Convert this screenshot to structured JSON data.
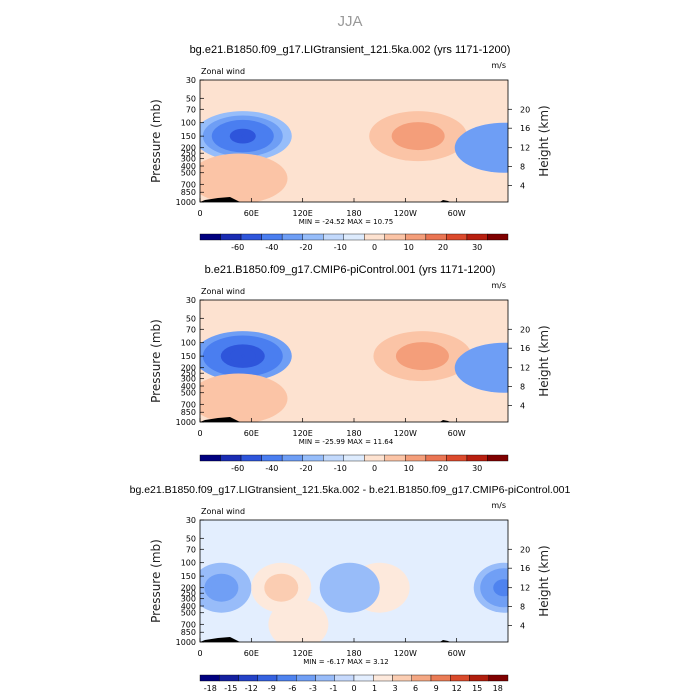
{
  "figure_title": "JJA",
  "chart_data": [
    {
      "type": "heatmap",
      "title": "bg.e21.B1850.f09_g17.LIGtransient_121.5ka.002 (yrs 1171-1200)",
      "variable": "Zonal wind",
      "units": "m/s",
      "ylabel": "Pressure (mb)",
      "ylabel_right": "Height (km)",
      "x_ticks": [
        "0",
        "60E",
        "120E",
        "180",
        "120W",
        "60W"
      ],
      "y_ticks": [
        "30",
        "50",
        "70",
        "100",
        "150",
        "200",
        "250",
        "300",
        "400",
        "500",
        "700",
        "850",
        "1000"
      ],
      "height_ticks": [
        "4",
        "8",
        "12",
        "16",
        "20"
      ],
      "stats": "MIN = -24.52   MAX =  10.75",
      "colorbar_labels": [
        "-60",
        "-40",
        "-20",
        "-10",
        "0",
        "10",
        "20",
        "30"
      ],
      "features": [
        {
          "lon": 50,
          "p": 150,
          "value": -24.5
        },
        {
          "lon": 255,
          "p": 150,
          "value": 10.7
        },
        {
          "lon": 45,
          "p": 600,
          "value": 5
        },
        {
          "lon": 355,
          "p": 200,
          "value": -6
        }
      ]
    },
    {
      "type": "heatmap",
      "title": "b.e21.B1850.f09_g17.CMIP6-piControl.001 (yrs 1171-1200)",
      "variable": "Zonal wind",
      "units": "m/s",
      "ylabel": "Pressure (mb)",
      "ylabel_right": "Height (km)",
      "x_ticks": [
        "0",
        "60E",
        "120E",
        "180",
        "120W",
        "60W"
      ],
      "y_ticks": [
        "30",
        "50",
        "70",
        "100",
        "150",
        "200",
        "250",
        "300",
        "400",
        "500",
        "700",
        "850",
        "1000"
      ],
      "height_ticks": [
        "4",
        "8",
        "12",
        "16",
        "20"
      ],
      "stats": "MIN = -25.99   MAX =  11.64",
      "colorbar_labels": [
        "-60",
        "-40",
        "-20",
        "-10",
        "0",
        "10",
        "20",
        "30"
      ],
      "features": [
        {
          "lon": 50,
          "p": 150,
          "value": -26
        },
        {
          "lon": 260,
          "p": 150,
          "value": 11.6
        },
        {
          "lon": 45,
          "p": 600,
          "value": 5
        },
        {
          "lon": 355,
          "p": 200,
          "value": -6
        }
      ]
    },
    {
      "type": "heatmap",
      "title": "bg.e21.B1850.f09_g17.LIGtransient_121.5ka.002 - b.e21.B1850.f09_g17.CMIP6-piControl.001",
      "variable": "Zonal wind",
      "units": "m/s",
      "ylabel": "Pressure (mb)",
      "ylabel_right": "Height (km)",
      "x_ticks": [
        "0",
        "60E",
        "120E",
        "180",
        "120W",
        "60W"
      ],
      "y_ticks": [
        "30",
        "50",
        "70",
        "100",
        "150",
        "200",
        "250",
        "300",
        "400",
        "500",
        "700",
        "850",
        "1000"
      ],
      "height_ticks": [
        "4",
        "8",
        "12",
        "16",
        "20"
      ],
      "stats": "MIN =  -6.17   MAX =    3.12",
      "colorbar_labels": [
        "-18",
        "-15",
        "-12",
        "-9",
        "-6",
        "-3",
        "-1",
        "0",
        "1",
        "3",
        "6",
        "9",
        "12",
        "15",
        "18"
      ],
      "features": [
        {
          "lon": 25,
          "p": 200,
          "value": -6
        },
        {
          "lon": 95,
          "p": 200,
          "value": 3
        },
        {
          "lon": 210,
          "p": 200,
          "value": 2.5
        },
        {
          "lon": 355,
          "p": 200,
          "value": -6.2
        },
        {
          "lon": 115,
          "p": 700,
          "value": 1.5
        },
        {
          "lon": 175,
          "p": 200,
          "value": -3
        }
      ]
    }
  ],
  "colors": {
    "main_scale": [
      "#00007f",
      "#1a2cb3",
      "#2e55db",
      "#4a7ef0",
      "#6e9ef5",
      "#96bdfa",
      "#c2d9fc",
      "#ddebfd",
      "#fde2d0",
      "#fbc4a6",
      "#f49e7a",
      "#ea7553",
      "#dc4a2c",
      "#b81f0f",
      "#7f0000"
    ],
    "diff_scale": [
      "#00007f",
      "#14209f",
      "#2442c7",
      "#3562e0",
      "#4f83ef",
      "#709ff5",
      "#98bcf9",
      "#c6d9fc",
      "#e3eefe",
      "#fde9dc",
      "#fbcdb2",
      "#f4a783",
      "#ea7c56",
      "#d94a2b",
      "#b01e0d",
      "#7f0000"
    ]
  }
}
